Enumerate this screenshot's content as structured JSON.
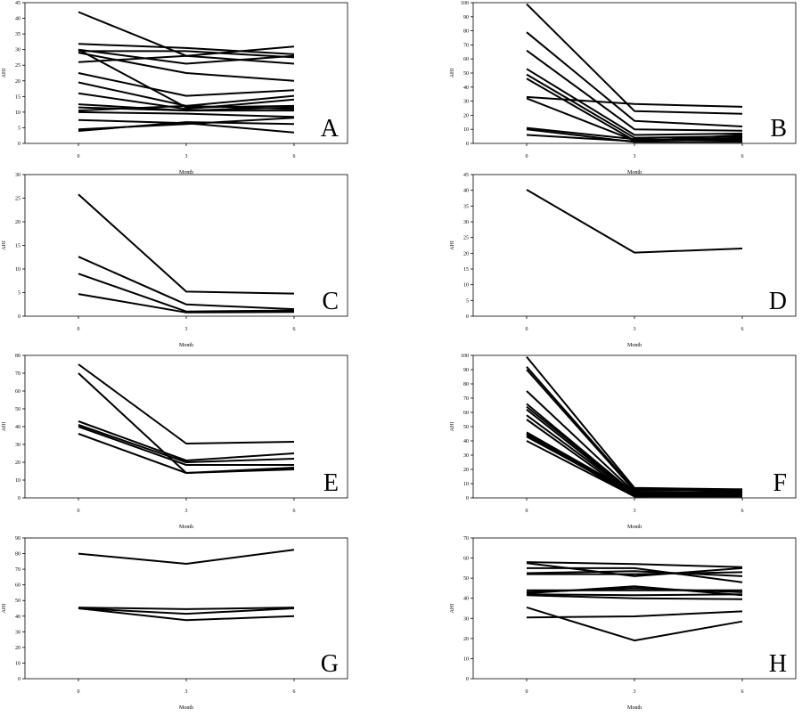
{
  "chart_data": [
    {
      "type": "line",
      "panel": "A",
      "xlabel": "Month",
      "ylabel": "AHI",
      "x": [
        "0",
        "3",
        "6"
      ],
      "ylim": [
        0,
        45
      ],
      "yticks": [
        "0",
        "5",
        "10",
        "15",
        "20",
        "25",
        "30",
        "35",
        "40",
        "45"
      ],
      "series": [
        {
          "values": [
            42,
            28,
            31
          ]
        },
        {
          "values": [
            31.8,
            30.5,
            28.5
          ]
        },
        {
          "values": [
            30,
            25.5,
            28
          ]
        },
        {
          "values": [
            29.5,
            29.5,
            27.5
          ]
        },
        {
          "values": [
            29,
            22.5,
            20
          ]
        },
        {
          "values": [
            26,
            28,
            25.5
          ]
        },
        {
          "values": [
            30,
            11.5,
            12
          ]
        },
        {
          "values": [
            22.5,
            15.2,
            17
          ]
        },
        {
          "values": [
            19.5,
            12,
            15.2
          ]
        },
        {
          "values": [
            16,
            11,
            14
          ]
        },
        {
          "values": [
            12.5,
            10.5,
            11.5
          ]
        },
        {
          "values": [
            11.5,
            10.5,
            10.5
          ]
        },
        {
          "values": [
            10.5,
            12,
            11
          ]
        },
        {
          "values": [
            10,
            9.5,
            8.5
          ]
        },
        {
          "values": [
            7.5,
            6.5,
            3.5
          ]
        },
        {
          "values": [
            4.5,
            6.2,
            8.2
          ]
        },
        {
          "values": [
            4,
            6.8,
            6.2
          ]
        }
      ]
    },
    {
      "type": "line",
      "panel": "B",
      "xlabel": "Month",
      "ylabel": "AHI",
      "x": [
        "0",
        "3",
        "6"
      ],
      "ylim": [
        0,
        100
      ],
      "yticks": [
        "0",
        "10",
        "20",
        "30",
        "40",
        "50",
        "60",
        "70",
        "80",
        "90",
        "100"
      ],
      "series": [
        {
          "values": [
            99,
            23,
            21
          ]
        },
        {
          "values": [
            79,
            16,
            12
          ]
        },
        {
          "values": [
            66,
            10,
            9
          ]
        },
        {
          "values": [
            53,
            6,
            7
          ]
        },
        {
          "values": [
            49,
            4,
            5
          ]
        },
        {
          "values": [
            46,
            2,
            4
          ]
        },
        {
          "values": [
            33,
            28,
            26
          ]
        },
        {
          "values": [
            32,
            2,
            3
          ]
        },
        {
          "values": [
            11,
            3,
            2
          ]
        },
        {
          "values": [
            10,
            1,
            1
          ]
        },
        {
          "values": [
            6,
            1.5,
            6
          ]
        }
      ]
    },
    {
      "type": "line",
      "panel": "C",
      "xlabel": "Month",
      "ylabel": "AHI",
      "x": [
        "0",
        "3",
        "6"
      ],
      "ylim": [
        0,
        30
      ],
      "yticks": [
        "0",
        "5",
        "10",
        "15",
        "20",
        "25",
        "30"
      ],
      "series": [
        {
          "values": [
            25.8,
            5.2,
            4.8
          ]
        },
        {
          "values": [
            12.6,
            2.5,
            1.5
          ]
        },
        {
          "values": [
            9,
            1,
            1.2
          ]
        },
        {
          "values": [
            4.7,
            0.8,
            0.9
          ]
        }
      ]
    },
    {
      "type": "line",
      "panel": "D",
      "xlabel": "Month",
      "ylabel": "AHI",
      "x": [
        "0",
        "3",
        "6"
      ],
      "ylim": [
        0,
        45
      ],
      "yticks": [
        "0",
        "5",
        "10",
        "15",
        "20",
        "25",
        "30",
        "35",
        "40",
        "45"
      ],
      "series": [
        {
          "values": [
            40.2,
            20.2,
            21.5
          ]
        }
      ]
    },
    {
      "type": "line",
      "panel": "E",
      "xlabel": "Month",
      "ylabel": "AHI",
      "x": [
        "0",
        "3",
        "6"
      ],
      "ylim": [
        0,
        80
      ],
      "yticks": [
        "0",
        "10",
        "20",
        "30",
        "40",
        "50",
        "60",
        "70",
        "80"
      ],
      "series": [
        {
          "values": [
            75,
            30.5,
            31.5
          ]
        },
        {
          "values": [
            70,
            14,
            16
          ]
        },
        {
          "values": [
            43,
            21,
            25
          ]
        },
        {
          "values": [
            41,
            20,
            22
          ]
        },
        {
          "values": [
            40,
            18.5,
            18.5
          ]
        },
        {
          "values": [
            36,
            14,
            17
          ]
        }
      ]
    },
    {
      "type": "line",
      "panel": "F",
      "xlabel": "Month",
      "ylabel": "AHI",
      "x": [
        "0",
        "3",
        "6"
      ],
      "ylim": [
        0,
        100
      ],
      "yticks": [
        "0",
        "10",
        "20",
        "30",
        "40",
        "50",
        "60",
        "70",
        "80",
        "90",
        "100"
      ],
      "series": [
        {
          "values": [
            99,
            7,
            6
          ]
        },
        {
          "values": [
            92,
            6,
            5
          ]
        },
        {
          "values": [
            90,
            5,
            6
          ]
        },
        {
          "values": [
            75,
            4,
            4
          ]
        },
        {
          "values": [
            66,
            3,
            5
          ]
        },
        {
          "values": [
            64,
            3,
            3
          ]
        },
        {
          "values": [
            62,
            2,
            4
          ]
        },
        {
          "values": [
            58,
            2,
            3
          ]
        },
        {
          "values": [
            55,
            1,
            2
          ]
        },
        {
          "values": [
            46,
            3,
            3
          ]
        },
        {
          "values": [
            45,
            2,
            2
          ]
        },
        {
          "values": [
            44,
            1,
            1
          ]
        },
        {
          "values": [
            43,
            2,
            5
          ]
        },
        {
          "values": [
            40,
            1,
            1
          ]
        }
      ]
    },
    {
      "type": "line",
      "panel": "G",
      "xlabel": "Month",
      "ylabel": "AHI",
      "x": [
        "0",
        "3",
        "6"
      ],
      "ylim": [
        0,
        90
      ],
      "yticks": [
        "0",
        "10",
        "20",
        "30",
        "40",
        "50",
        "60",
        "70",
        "80",
        "90"
      ],
      "series": [
        {
          "values": [
            80,
            73.5,
            82.5
          ]
        },
        {
          "values": [
            45.5,
            44.5,
            45.5
          ]
        },
        {
          "values": [
            45,
            41.5,
            45
          ]
        },
        {
          "values": [
            45,
            37.5,
            40
          ]
        }
      ]
    },
    {
      "type": "line",
      "panel": "H",
      "xlabel": "Month",
      "ylabel": "AHI",
      "x": [
        "0",
        "3",
        "6"
      ],
      "ylim": [
        0,
        70
      ],
      "yticks": [
        "0",
        "10",
        "20",
        "30",
        "40",
        "50",
        "60",
        "70"
      ],
      "series": [
        {
          "values": [
            58,
            57,
            55.5
          ]
        },
        {
          "values": [
            57.5,
            51,
            55
          ]
        },
        {
          "values": [
            55,
            55,
            48
          ]
        },
        {
          "values": [
            52.5,
            53.5,
            51
          ]
        },
        {
          "values": [
            52,
            52,
            53
          ]
        },
        {
          "values": [
            44,
            44,
            44
          ]
        },
        {
          "values": [
            43,
            45,
            43
          ]
        },
        {
          "values": [
            42.5,
            46,
            41.5
          ]
        },
        {
          "values": [
            42,
            41.5,
            42
          ]
        },
        {
          "values": [
            41.5,
            40,
            39.5
          ]
        },
        {
          "values": [
            35.5,
            19,
            28.5
          ]
        },
        {
          "values": [
            30.5,
            31,
            33.5
          ]
        }
      ]
    }
  ]
}
